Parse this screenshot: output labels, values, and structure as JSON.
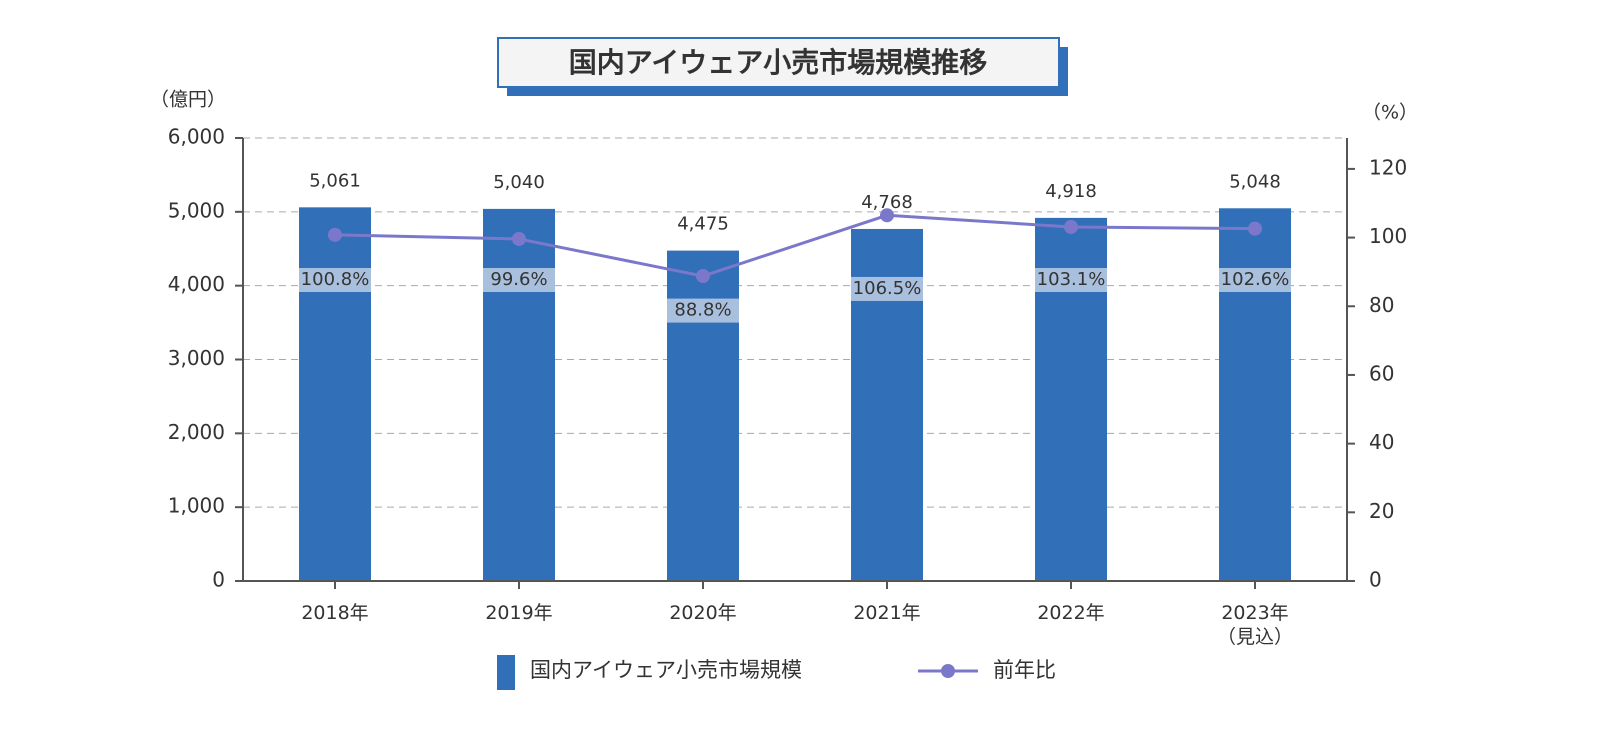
{
  "chart_data": {
    "type": "bar_line",
    "title": "国内アイウェア小売市場規模推移",
    "y_label": "（億円）",
    "y2_label": "（%）",
    "categories": [
      "2018年",
      "2019年",
      "2020年",
      "2021年",
      "2022年",
      "2023年\n（見込）"
    ],
    "series": [
      {
        "name": "国内アイウェア小売市場規模",
        "type": "bar",
        "color": "#3170b8",
        "values": [
          5061,
          5040,
          4475,
          4768,
          4918,
          5048
        ],
        "value_labels": [
          "5,061",
          "5,040",
          "4,475",
          "4,768",
          "4,918",
          "5,048"
        ]
      },
      {
        "name": "前年比",
        "type": "line",
        "axis": "y2",
        "color": "#7b78cc",
        "values": [
          100.8,
          99.6,
          88.8,
          106.5,
          103.1,
          102.6
        ],
        "value_labels": [
          "100.8%",
          "99.6%",
          "88.8%",
          "106.5%",
          "103.1%",
          "102.6%"
        ]
      }
    ],
    "ylim": [
      0,
      6000
    ],
    "yticks": [
      0,
      {
        "value": 1000,
        "label": "1,000"
      },
      {
        "value": 2000,
        "label": "2,000"
      },
      {
        "value": 3000,
        "label": "3,000"
      },
      {
        "value": 4000,
        "label": "4,000"
      },
      {
        "value": 5000,
        "label": "5,000"
      },
      {
        "value": 6000,
        "label": "6,000"
      }
    ],
    "y2lim": [
      0,
      129
    ],
    "y2ticks": [
      0,
      20,
      40,
      60,
      80,
      100,
      120
    ],
    "grid": true
  }
}
